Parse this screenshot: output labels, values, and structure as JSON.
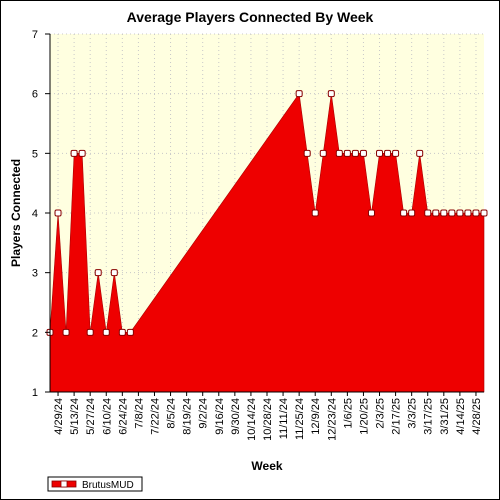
{
  "chart_data": {
    "type": "area",
    "title": "Average Players Connected By Week",
    "xlabel": "Week",
    "ylabel": "Players Connected",
    "ylim": [
      1,
      7
    ],
    "yticks": [
      1,
      2,
      3,
      4,
      5,
      6,
      7
    ],
    "x_tick_labels": [
      "4/29/24",
      "5/13/24",
      "5/27/24",
      "6/10/24",
      "6/24/24",
      "7/8/24",
      "7/22/24",
      "8/5/24",
      "8/19/24",
      "9/2/24",
      "9/16/24",
      "9/30/24",
      "10/14/24",
      "10/28/24",
      "11/11/24",
      "11/25/24",
      "12/9/24",
      "12/23/24",
      "1/6/25",
      "1/20/25",
      "2/3/25",
      "2/17/25",
      "3/3/25",
      "3/17/25",
      "3/31/25",
      "4/14/25",
      "4/28/25"
    ],
    "grid": true,
    "legend_position": "bottom-left",
    "colors": {
      "fill": "#ee0000",
      "plot_bg": "#ffffe0",
      "marker_fill": "#ffffff",
      "marker_stroke": "#880000"
    },
    "series": [
      {
        "name": "BrutusMUD",
        "points": [
          {
            "x": "4/22/24",
            "y": 2
          },
          {
            "x": "4/29/24",
            "y": 4
          },
          {
            "x": "5/6/24",
            "y": 2
          },
          {
            "x": "5/13/24",
            "y": 5
          },
          {
            "x": "5/20/24",
            "y": 5
          },
          {
            "x": "5/27/24",
            "y": 2
          },
          {
            "x": "6/3/24",
            "y": 3
          },
          {
            "x": "6/10/24",
            "y": 2
          },
          {
            "x": "6/17/24",
            "y": 3
          },
          {
            "x": "6/24/24",
            "y": 2
          },
          {
            "x": "7/1/24",
            "y": 2
          },
          {
            "x": "11/25/24",
            "y": 6
          },
          {
            "x": "12/2/24",
            "y": 5
          },
          {
            "x": "12/9/24",
            "y": 4
          },
          {
            "x": "12/16/24",
            "y": 5
          },
          {
            "x": "12/23/24",
            "y": 6
          },
          {
            "x": "12/30/24",
            "y": 5
          },
          {
            "x": "1/6/25",
            "y": 5
          },
          {
            "x": "1/13/25",
            "y": 5
          },
          {
            "x": "1/20/25",
            "y": 5
          },
          {
            "x": "1/27/25",
            "y": 4
          },
          {
            "x": "2/3/25",
            "y": 5
          },
          {
            "x": "2/10/25",
            "y": 5
          },
          {
            "x": "2/17/25",
            "y": 5
          },
          {
            "x": "2/24/25",
            "y": 4
          },
          {
            "x": "3/3/25",
            "y": 4
          },
          {
            "x": "3/10/25",
            "y": 5
          },
          {
            "x": "3/17/25",
            "y": 4
          },
          {
            "x": "3/24/25",
            "y": 4
          },
          {
            "x": "3/31/25",
            "y": 4
          },
          {
            "x": "4/7/25",
            "y": 4
          },
          {
            "x": "4/14/25",
            "y": 4
          },
          {
            "x": "4/21/25",
            "y": 4
          },
          {
            "x": "4/28/25",
            "y": 4
          },
          {
            "x": "5/5/25",
            "y": 4
          }
        ]
      }
    ]
  }
}
